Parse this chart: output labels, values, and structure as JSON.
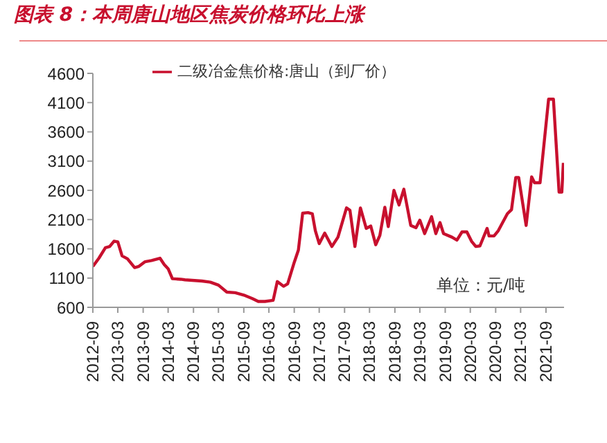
{
  "chart_data": {
    "type": "line",
    "title": "图表 8：本周唐山地区焦炭价格环比上涨",
    "annotations": [
      "单位：元/吨"
    ],
    "x": [
      "2012-09-01",
      "2012-10-15",
      "2012-12-01",
      "2013-01-01",
      "2013-02-01",
      "2013-03-01",
      "2013-04-01",
      "2013-05-10",
      "2013-07-01",
      "2013-08-01",
      "2013-09-15",
      "2013-11-01",
      "2014-01-01",
      "2014-02-01",
      "2014-03-01",
      "2014-04-01",
      "2014-06-01",
      "2014-07-01",
      "2014-11-01",
      "2015-01-01",
      "2015-03-01",
      "2015-05-01",
      "2015-07-01",
      "2015-09-01",
      "2015-11-01",
      "2015-12-15",
      "2016-02-01",
      "2016-04-01",
      "2016-05-01",
      "2016-06-15",
      "2016-07-15",
      "2016-09-01",
      "2016-10-01",
      "2016-11-01",
      "2016-12-10",
      "2017-01-10",
      "2017-02-01",
      "2017-03-01",
      "2017-04-10",
      "2017-06-01",
      "2017-07-15",
      "2017-09-15",
      "2017-10-10",
      "2017-11-15",
      "2017-12-25",
      "2018-02-05",
      "2018-03-10",
      "2018-04-15",
      "2018-05-15",
      "2018-06-20",
      "2018-07-15",
      "2018-08-25",
      "2018-10-01",
      "2018-11-05",
      "2018-12-25",
      "2019-02-01",
      "2019-03-01",
      "2019-04-05",
      "2019-05-25",
      "2019-06-25",
      "2019-07-25",
      "2019-08-20",
      "2019-10-20",
      "2019-11-25",
      "2020-01-01",
      "2020-02-05",
      "2020-03-10",
      "2020-04-10",
      "2020-05-10",
      "2020-07-01",
      "2020-07-15",
      "2020-08-20",
      "2020-09-20",
      "2020-11-25",
      "2020-12-25",
      "2021-01-25",
      "2021-02-15",
      "2021-04-10",
      "2021-05-20",
      "2021-06-10",
      "2021-07-20",
      "2021-09-20",
      "2021-10-25",
      "2021-12-05",
      "2021-12-25",
      "2022-01-05"
    ],
    "series": [
      {
        "name": "二级冶金焦价格:唐山（到厂价）",
        "color": "#c8102e",
        "values": [
          1300,
          1440,
          1620,
          1640,
          1730,
          1720,
          1480,
          1430,
          1280,
          1300,
          1380,
          1400,
          1440,
          1330,
          1260,
          1090,
          1080,
          1070,
          1050,
          1030,
          980,
          860,
          850,
          810,
          750,
          700,
          700,
          720,
          1040,
          960,
          1000,
          1370,
          1580,
          2210,
          2220,
          2200,
          1910,
          1690,
          1870,
          1640,
          1800,
          2300,
          2260,
          1640,
          2300,
          1950,
          1990,
          1670,
          1830,
          2310,
          1980,
          2600,
          2350,
          2620,
          2000,
          1960,
          2090,
          1860,
          2150,
          1860,
          2050,
          1860,
          1800,
          1750,
          1890,
          1890,
          1730,
          1640,
          1650,
          1950,
          1820,
          1820,
          1910,
          2200,
          2270,
          2820,
          2820,
          2000,
          2830,
          2730,
          2730,
          4160,
          4160,
          2570,
          2570,
          3070
        ]
      }
    ],
    "ylim": [
      600,
      4600
    ],
    "yticks": [
      600,
      1100,
      1600,
      2100,
      2600,
      3100,
      3600,
      4100,
      4600
    ],
    "xlim": [
      "2012-09-01",
      "2022-01-10"
    ],
    "xticks": [
      "2012-09",
      "2013-03",
      "2013-09",
      "2014-03",
      "2014-09",
      "2015-03",
      "2015-09",
      "2016-03",
      "2016-09",
      "2017-03",
      "2017-09",
      "2018-03",
      "2018-09",
      "2019-03",
      "2019-09",
      "2020-03",
      "2020-09",
      "2021-03",
      "2021-09"
    ],
    "grid": false,
    "legend": "top"
  }
}
